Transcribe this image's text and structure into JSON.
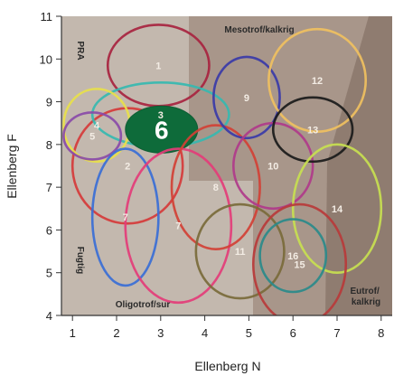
{
  "chart_data": {
    "type": "scatter",
    "title": "",
    "xlabel": "Ellenberg N",
    "ylabel": "Ellenberg F",
    "xlim": [
      0.75,
      8.25
    ],
    "ylim": [
      4,
      11
    ],
    "xticks": [
      1,
      2,
      3,
      4,
      5,
      6,
      7,
      8
    ],
    "yticks": [
      4,
      5,
      6,
      7,
      8,
      9,
      10,
      11
    ],
    "x_tick_labels": [
      "1",
      "2",
      "3",
      "4",
      "5",
      "6",
      "7",
      "8"
    ],
    "y_tick_labels": [
      "4",
      "5",
      "6",
      "7",
      "8",
      "9",
      "10",
      "11"
    ],
    "grid": false,
    "region_labels": [
      {
        "id": "pra",
        "text": "PRA"
      },
      {
        "id": "mesotrof",
        "text": "Mesotrof/kalkrig"
      },
      {
        "id": "fugtig",
        "text": "Fugtig"
      },
      {
        "id": "oligotrof",
        "text": "Oligotrof/sur"
      },
      {
        "id": "eutrof",
        "lines": [
          "Eutrof/",
          "kalkrig"
        ]
      }
    ],
    "ellipses": [
      {
        "label": "1",
        "cx": 2.95,
        "cy": 9.85,
        "rx": 1.15,
        "ry": 0.95,
        "color": "#a8233f"
      },
      {
        "label": "2",
        "cx": 2.25,
        "cy": 7.5,
        "rx": 1.25,
        "ry": 1.35,
        "color": "#d63a3a"
      },
      {
        "label": "3",
        "cx": 3.0,
        "cy": 8.7,
        "rx": 1.55,
        "ry": 0.75,
        "color": "#36b8b0"
      },
      {
        "label": "4",
        "cx": 1.55,
        "cy": 8.45,
        "rx": 0.75,
        "ry": 0.85,
        "color": "#e8e04a"
      },
      {
        "label": "5",
        "cx": 1.45,
        "cy": 8.2,
        "rx": 0.65,
        "ry": 0.55,
        "color": "#8a4aa8"
      },
      {
        "label": "6",
        "cx": 3.02,
        "cy": 8.35,
        "rx": 0.82,
        "ry": 0.55,
        "color": "#0e6b3a"
      },
      {
        "label": "7",
        "cx": 2.2,
        "cy": 6.3,
        "rx": 0.75,
        "ry": 1.6,
        "color": "#3a6ed6"
      },
      {
        "label": "7",
        "cx": 3.4,
        "cy": 6.1,
        "rx": 1.2,
        "ry": 1.8,
        "color": "#e43c78"
      },
      {
        "label": "8",
        "cx": 4.25,
        "cy": 7.0,
        "rx": 1.0,
        "ry": 1.45,
        "color": "#d24035"
      },
      {
        "label": "9",
        "cx": 4.95,
        "cy": 9.1,
        "rx": 0.75,
        "ry": 0.95,
        "color": "#3a3aa8"
      },
      {
        "label": "10",
        "cx": 5.55,
        "cy": 7.5,
        "rx": 0.9,
        "ry": 1.0,
        "color": "#b03a8a"
      },
      {
        "label": "11",
        "cx": 4.8,
        "cy": 5.5,
        "rx": 1.0,
        "ry": 1.1,
        "color": "#7a6a3a"
      },
      {
        "label": "12",
        "cx": 6.55,
        "cy": 9.5,
        "rx": 1.1,
        "ry": 1.2,
        "color": "#f0c060"
      },
      {
        "label": "13",
        "cx": 6.45,
        "cy": 8.35,
        "rx": 0.9,
        "ry": 0.75,
        "color": "#1a1a1a"
      },
      {
        "label": "14",
        "cx": 7.0,
        "cy": 6.5,
        "rx": 1.0,
        "ry": 1.5,
        "color": "#c8e050"
      },
      {
        "label": "15",
        "cx": 6.15,
        "cy": 5.2,
        "rx": 1.05,
        "ry": 1.4,
        "color": "#b83a3a"
      },
      {
        "label": "16",
        "cx": 6.0,
        "cy": 5.4,
        "rx": 0.75,
        "ry": 0.85,
        "color": "#2a8a8a"
      }
    ]
  }
}
